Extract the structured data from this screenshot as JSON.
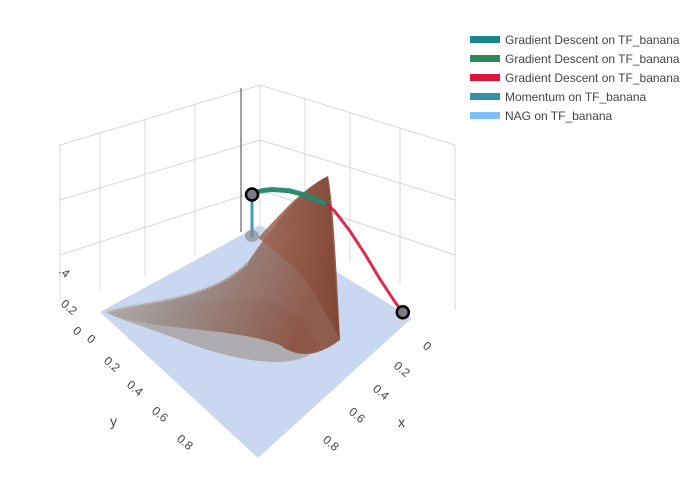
{
  "chart_data": {
    "type": "surface3d",
    "title": "",
    "surface_name": "TF_banana",
    "axes": {
      "x": {
        "label": "x",
        "ticks": [
          "0",
          "0.2",
          "0.4",
          "0.6",
          "0.8"
        ],
        "range": [
          0,
          1
        ]
      },
      "y": {
        "label": "y",
        "ticks": [
          "0",
          "0.2",
          "0.4",
          "0.6",
          "0.8"
        ],
        "range": [
          0,
          1
        ]
      },
      "z": {
        "label": "",
        "ticks": [
          "0",
          "0.2",
          ".4"
        ],
        "range": [
          0,
          0.6
        ]
      }
    },
    "grid": true,
    "legend_position": "top-right",
    "series": [
      {
        "name": "Gradient Descent on TF_banana",
        "color": "#17868f",
        "points": [
          [
            0.0,
            0.05,
            0.37
          ],
          [
            0.02,
            0.04,
            0.4
          ],
          [
            0.05,
            0.03,
            0.43
          ],
          [
            0.1,
            0.02,
            0.47
          ],
          [
            0.2,
            0.01,
            0.53
          ],
          [
            0.3,
            0.01,
            0.57
          ],
          [
            0.4,
            0.01,
            0.59
          ],
          [
            0.45,
            0.01,
            0.6
          ]
        ]
      },
      {
        "name": "Gradient Descent on TF_banana",
        "color": "#2e8b57",
        "points": [
          [
            0.0,
            0.05,
            0.37
          ],
          [
            0.05,
            0.03,
            0.43
          ],
          [
            0.15,
            0.015,
            0.5
          ],
          [
            0.3,
            0.01,
            0.57
          ],
          [
            0.45,
            0.01,
            0.6
          ]
        ]
      },
      {
        "name": "Gradient Descent on TF_banana",
        "color": "#dc143c",
        "points": [
          [
            0.45,
            0.01,
            0.6
          ],
          [
            0.5,
            0.01,
            0.58
          ],
          [
            0.6,
            0.01,
            0.48
          ],
          [
            0.7,
            0.01,
            0.35
          ],
          [
            0.8,
            0.01,
            0.2
          ],
          [
            0.9,
            0.01,
            0.07
          ],
          [
            0.95,
            0.01,
            0.02
          ]
        ]
      },
      {
        "name": "Momentum on TF_banana",
        "color": "#3392a9",
        "points": [
          [
            0.0,
            0.05,
            0.37
          ],
          [
            0.0,
            0.05,
            0.25
          ],
          [
            0.0,
            0.05,
            0.1
          ],
          [
            0.0,
            0.05,
            0.0
          ]
        ]
      },
      {
        "name": "NAG on TF_banana",
        "color": "#80bfff",
        "points": [
          [
            0.0,
            0.05,
            0.37
          ],
          [
            0.01,
            0.05,
            0.37
          ]
        ]
      }
    ],
    "markers": [
      {
        "label": "start",
        "point": [
          0.0,
          0.05,
          0.37
        ]
      },
      {
        "label": "end",
        "point": [
          0.95,
          0.01,
          0.02
        ]
      }
    ]
  },
  "colors": {
    "floor": "#c6d6ef",
    "surface_light": "#bfbfbf",
    "surface_dark": "#8a4e3c",
    "grid": "#d8d8d8"
  }
}
